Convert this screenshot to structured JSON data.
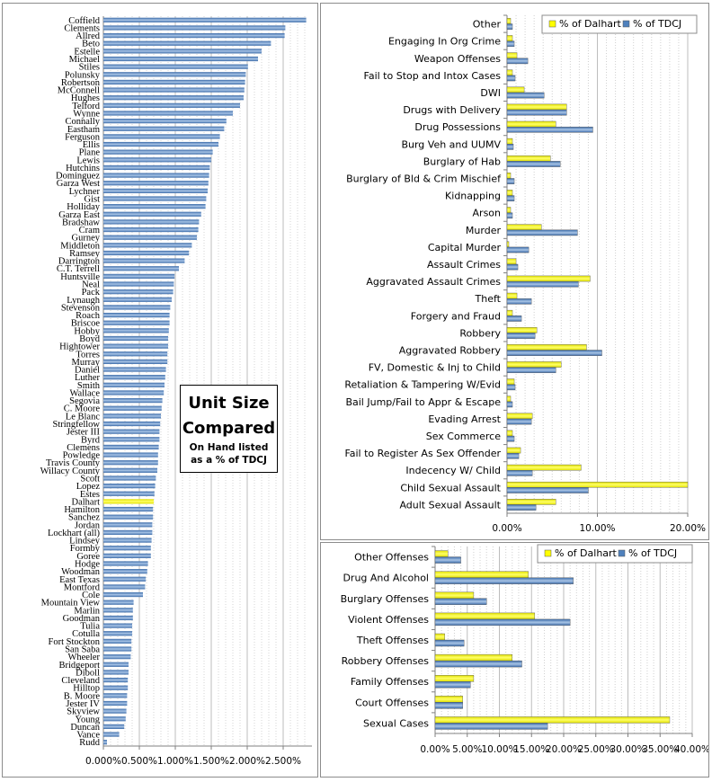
{
  "chart_data": [
    {
      "id": "unit_size",
      "type": "bar",
      "orientation": "horizontal",
      "annotation": {
        "title_line1": "Unit Size",
        "title_line2": "Compared",
        "note_line1": "On Hand listed",
        "note_line2": "as a % of TDCJ"
      },
      "categories": [
        "Coffield",
        "Clements",
        "Allred",
        "Beto",
        "Estelle",
        "Michael",
        "Stiles",
        "Polunsky",
        "Robertson",
        "McConnell",
        "Hughes",
        "Telford",
        "Wynne",
        "Connally",
        "Eastham",
        "Ferguson",
        "Ellis",
        "Plane",
        "Lewis",
        "Hutchins",
        "Dominguez",
        "Garza West",
        "Lychner",
        "Gist",
        "Holliday",
        "Garza East",
        "Bradshaw",
        "Cram",
        "Gurney",
        "Middleton",
        "Ramsey",
        "Darrington",
        "C.T. Terrell",
        "Huntsville",
        "Neal",
        "Pack",
        "Lynaugh",
        "Stevenson",
        "Roach",
        "Briscoe",
        "Hobby",
        "Boyd",
        "Hightower",
        "Torres",
        "Murray",
        "Daniel",
        "Luther",
        "Smith",
        "Wallace",
        "Segovia",
        "C. Moore",
        "Le Blanc",
        "Stringfellow",
        "Jester III",
        "Byrd",
        "Clemens",
        "Powledge",
        "Travis County",
        "Willacy County",
        "Scott",
        "Lopez",
        "Estes",
        "Dalhart",
        "Hamilton",
        "Sanchez",
        "Jordan",
        "Lockhart (all)",
        "Lindsey",
        "Formby",
        "Goree",
        "Hodge",
        "Woodman",
        "East Texas",
        "Montford",
        "Cole",
        "Mountain View",
        "Marlin",
        "Goodman",
        "Tulia",
        "Cotulla",
        "Fort Stockton",
        "San Saba",
        "Wheeler",
        "Bridgeport",
        "Diboll",
        "Cleveland",
        "Hilltop",
        "B. Moore",
        "Jester IV",
        "Skyview",
        "Young",
        "Duncan",
        "Vance",
        "Rudd"
      ],
      "values": [
        2.82,
        2.53,
        2.52,
        2.33,
        2.2,
        2.15,
        2.01,
        1.98,
        1.97,
        1.96,
        1.95,
        1.9,
        1.8,
        1.71,
        1.68,
        1.62,
        1.6,
        1.52,
        1.5,
        1.48,
        1.47,
        1.46,
        1.45,
        1.43,
        1.42,
        1.36,
        1.33,
        1.32,
        1.3,
        1.23,
        1.19,
        1.13,
        1.05,
        0.99,
        0.98,
        0.97,
        0.95,
        0.93,
        0.92,
        0.92,
        0.91,
        0.9,
        0.9,
        0.89,
        0.89,
        0.87,
        0.86,
        0.85,
        0.84,
        0.82,
        0.81,
        0.8,
        0.79,
        0.78,
        0.78,
        0.77,
        0.76,
        0.76,
        0.75,
        0.73,
        0.72,
        0.71,
        0.7,
        0.69,
        0.69,
        0.68,
        0.68,
        0.67,
        0.66,
        0.66,
        0.62,
        0.61,
        0.59,
        0.58,
        0.55,
        0.42,
        0.41,
        0.41,
        0.4,
        0.4,
        0.39,
        0.39,
        0.38,
        0.35,
        0.35,
        0.34,
        0.34,
        0.33,
        0.33,
        0.32,
        0.31,
        0.29,
        0.22,
        0.05
      ],
      "highlight": "Dalhart",
      "highlight_color": "#ffff00",
      "bar_color": "#4f81bd",
      "xlim": [
        0,
        2.9
      ],
      "xticks": [
        "0.000%",
        "0.500%",
        "1.000%",
        "1.500%",
        "2.000%",
        "2.500%"
      ],
      "grid": true
    },
    {
      "id": "offense_detail",
      "type": "bar",
      "orientation": "horizontal",
      "categories": [
        "Other",
        "Engaging In Org Crime",
        "Weapon Offenses",
        "Fail to Stop and Intox Cases",
        "DWI",
        "Drugs with Delivery",
        "Drug Possessions",
        "Burg Veh and UUMV",
        "Burglary of Hab",
        "Burglary of Bld & Crim Mischief",
        "Kidnapping",
        "Arson",
        "Murder",
        "Capital Murder",
        "Assault Crimes",
        "Aggravated Assault Crimes",
        "Theft",
        "Forgery and Fraud",
        "Robbery",
        "Aggravated Robbery",
        "FV, Domestic & Inj to Child",
        "Retaliation & Tampering W/Evid",
        "Bail Jump/Fail to Appr & Escape",
        "Evading Arrest",
        "Sex Commerce",
        "Fail to Register As Sex Offender",
        "Indecency W/ Child",
        "Child Sexual Assault",
        "Adult Sexual Assault"
      ],
      "series": [
        {
          "name": "% of Dalhart",
          "color": "#ffff00",
          "values": [
            0.4,
            0.6,
            1.1,
            0.6,
            1.9,
            6.6,
            5.4,
            0.6,
            4.8,
            0.4,
            0.6,
            0.4,
            3.8,
            0.2,
            1.0,
            9.2,
            1.1,
            0.6,
            3.3,
            8.8,
            6.0,
            0.8,
            0.4,
            2.8,
            0.6,
            1.5,
            8.2,
            20.0,
            5.4
          ]
        },
        {
          "name": "% of TDCJ",
          "color": "#4f81bd",
          "values": [
            0.6,
            0.8,
            2.3,
            0.9,
            4.1,
            6.6,
            9.5,
            0.7,
            5.9,
            0.8,
            0.8,
            0.6,
            7.8,
            2.4,
            1.2,
            7.9,
            2.7,
            1.6,
            3.1,
            10.5,
            5.4,
            0.9,
            0.6,
            2.7,
            0.8,
            1.3,
            2.8,
            9.0,
            3.2
          ]
        }
      ],
      "xlim": [
        0,
        20
      ],
      "xticks": [
        "0.00%",
        "10.00%",
        "20.00%"
      ],
      "legend": "top-right",
      "grid": true
    },
    {
      "id": "offense_groups",
      "type": "bar",
      "orientation": "horizontal",
      "categories": [
        "Other Offenses",
        "Drug And Alcohol",
        "Burglary Offenses",
        "Violent Offenses",
        "Theft Offenses",
        "Robbery Offenses",
        "Family Offenses",
        "Court Offenses",
        "Sexual Cases"
      ],
      "series": [
        {
          "name": "% of Dalhart",
          "color": "#ffff00",
          "values": [
            2.0,
            14.5,
            6.0,
            15.5,
            1.5,
            12.0,
            6.0,
            4.3,
            36.5
          ]
        },
        {
          "name": "% of TDCJ",
          "color": "#4f81bd",
          "values": [
            4.0,
            21.5,
            8.0,
            21.0,
            4.5,
            13.5,
            5.5,
            4.3,
            17.5
          ]
        }
      ],
      "xlim": [
        0,
        40
      ],
      "xticks": [
        "0.00%",
        "5.00%",
        "10.00%",
        "15.00%",
        "20.00%",
        "25.00%",
        "30.00%",
        "35.00%",
        "40.00%"
      ],
      "legend": "top-right",
      "grid": true
    }
  ]
}
